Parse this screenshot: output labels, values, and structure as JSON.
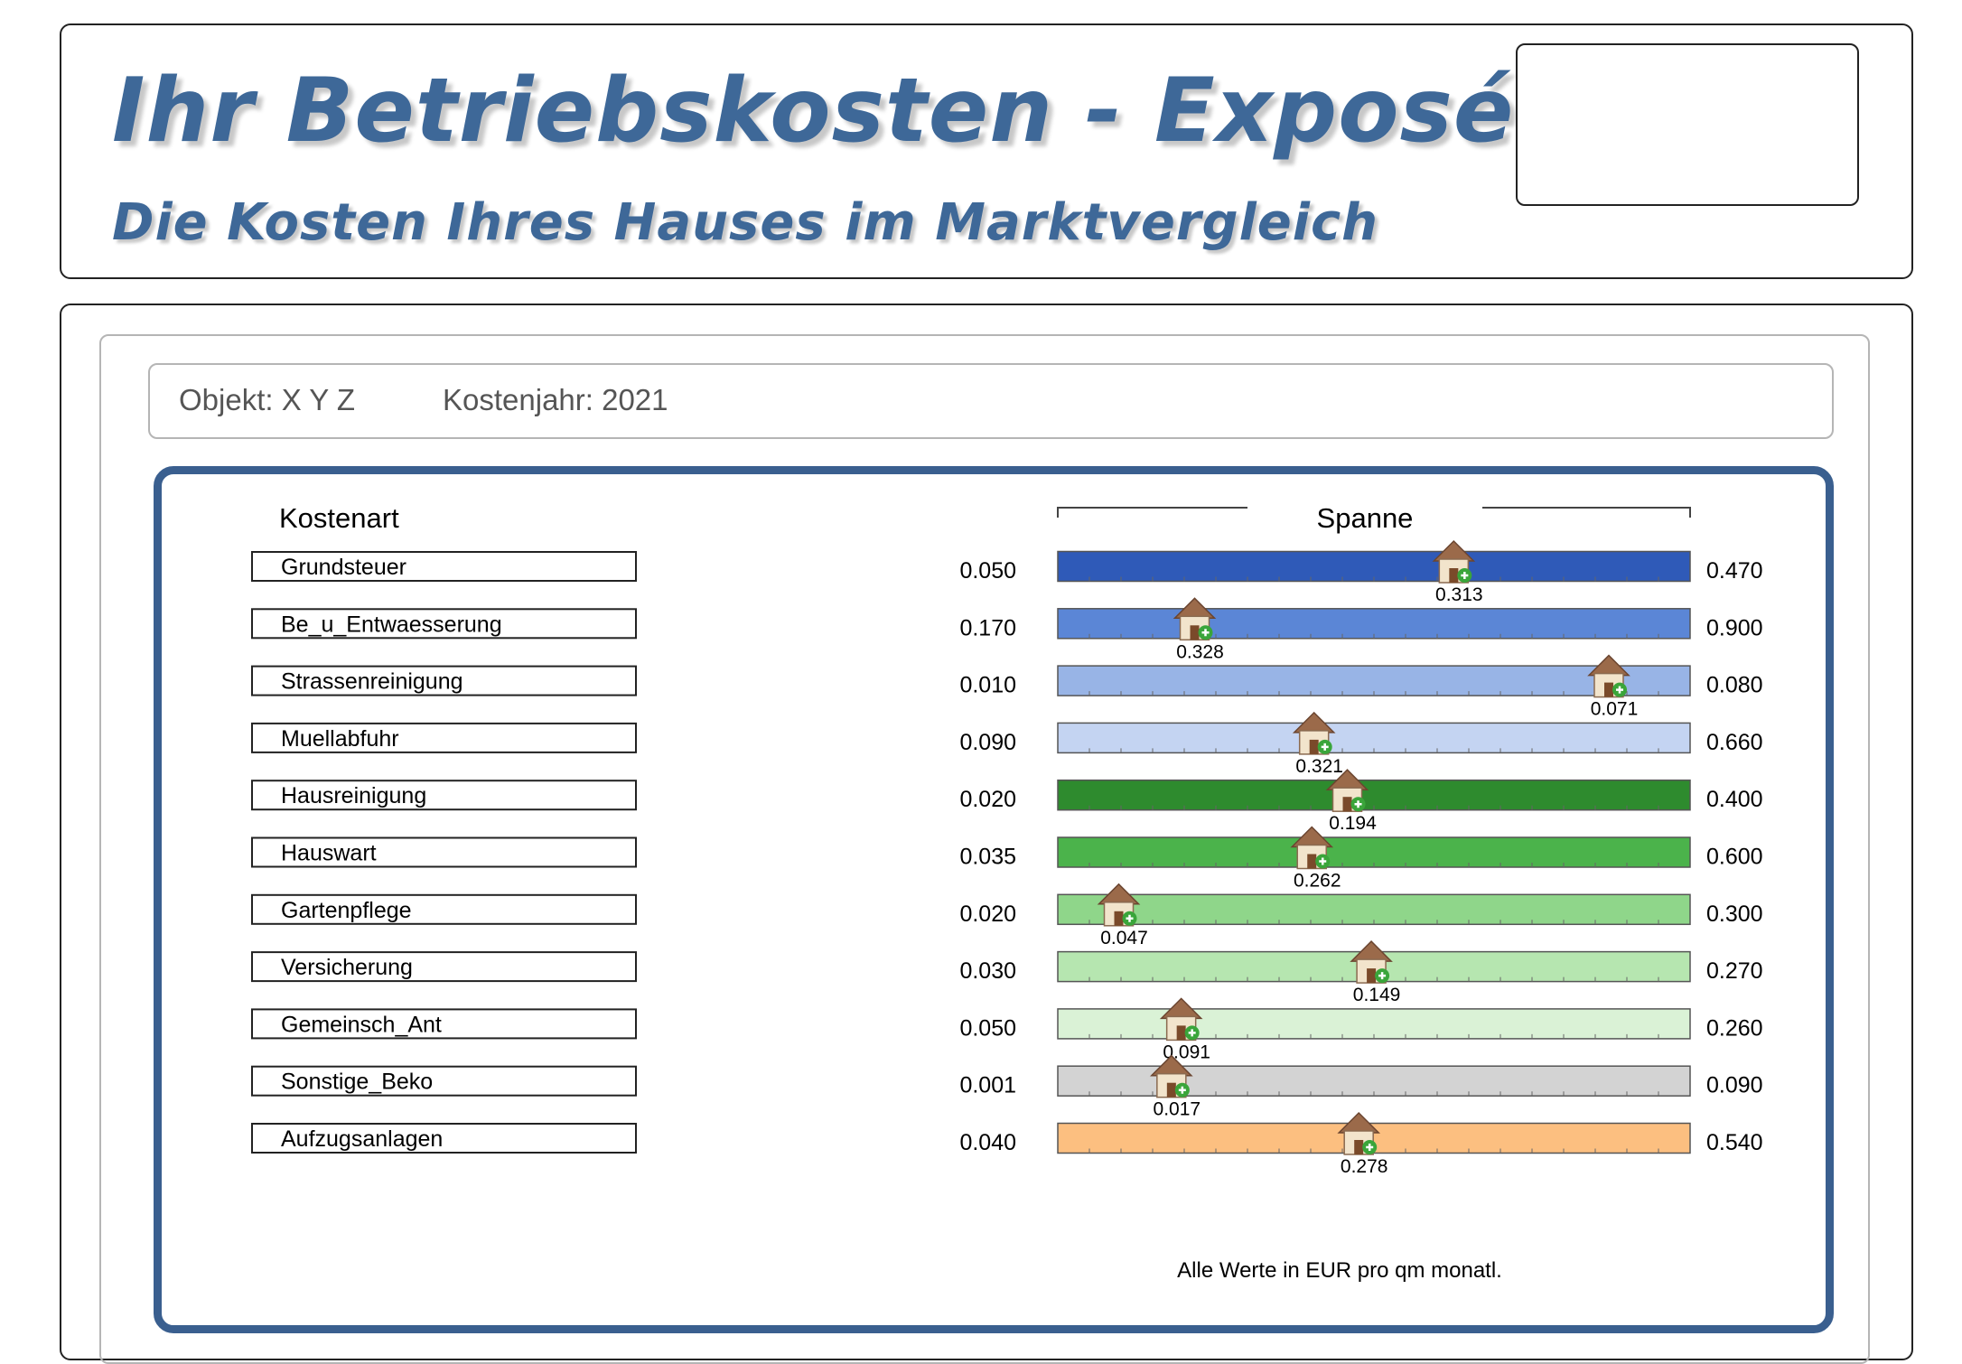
{
  "header": {
    "title": "Ihr Betriebskosten - Exposé",
    "subtitle": "Die Kosten Ihres Hauses im Marktvergleich"
  },
  "info": {
    "objekt": "Objekt: X Y Z",
    "kostenjahr": "Kostenjahr: 2021"
  },
  "chart_data": {
    "type": "range-bar",
    "category_header": "Kostenart",
    "range_header": "Spanne",
    "footnote": "Alle Werte in EUR pro qm monatl.",
    "marker_icon": "house-icon",
    "rows": [
      {
        "label": "Grundsteuer",
        "min": "0.050",
        "max": "0.470",
        "value": "0.313",
        "color": "#2f5ab8"
      },
      {
        "label": "Be_u_Entwaesserung",
        "min": "0.170",
        "max": "0.900",
        "value": "0.328",
        "color": "#5b86d6"
      },
      {
        "label": "Strassenreinigung",
        "min": "0.010",
        "max": "0.080",
        "value": "0.071",
        "color": "#98b4e6"
      },
      {
        "label": "Muellabfuhr",
        "min": "0.090",
        "max": "0.660",
        "value": "0.321",
        "color": "#c4d4f2"
      },
      {
        "label": "Hausreinigung",
        "min": "0.020",
        "max": "0.400",
        "value": "0.194",
        "color": "#2e8b2e"
      },
      {
        "label": "Hauswart",
        "min": "0.035",
        "max": "0.600",
        "value": "0.262",
        "color": "#4bb34b"
      },
      {
        "label": "Gartenpflege",
        "min": "0.020",
        "max": "0.300",
        "value": "0.047",
        "color": "#8fd68a"
      },
      {
        "label": "Versicherung",
        "min": "0.030",
        "max": "0.270",
        "value": "0.149",
        "color": "#b6e6b0"
      },
      {
        "label": "Gemeinsch_Ant",
        "min": "0.050",
        "max": "0.260",
        "value": "0.091",
        "color": "#daf2d6"
      },
      {
        "label": "Sonstige_Beko",
        "min": "0.001",
        "max": "0.090",
        "value": "0.017",
        "color": "#d3d3d3"
      },
      {
        "label": "Aufzugsanlagen",
        "min": "0.040",
        "max": "0.540",
        "value": "0.278",
        "color": "#fcbf80"
      }
    ]
  }
}
